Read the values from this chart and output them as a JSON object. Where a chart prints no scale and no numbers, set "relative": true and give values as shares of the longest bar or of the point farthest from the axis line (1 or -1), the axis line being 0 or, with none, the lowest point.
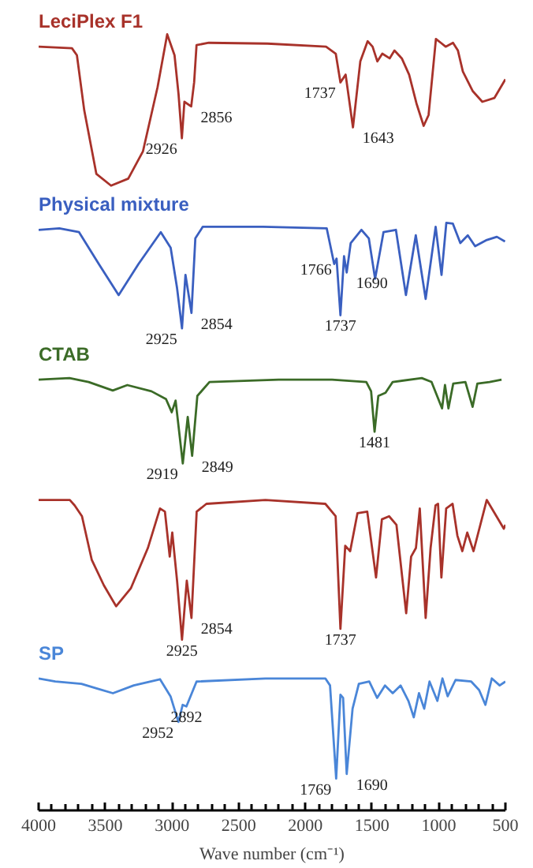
{
  "chart_data": {
    "type": "line",
    "relative": true,
    "xlabel": "Wave number (cm⁻¹)",
    "xlim": [
      4000,
      500
    ],
    "xticks": [
      4000,
      3500,
      3000,
      2500,
      2000,
      1500,
      1000,
      500
    ],
    "grid": false,
    "legend": false,
    "tick_labels": "x",
    "marker": "none",
    "line_style": "solid",
    "series": [
      {
        "name": "LeciPlex F1",
        "color": "#a8322a",
        "x": [
          4000,
          3750,
          3713,
          3658,
          3567,
          3457,
          3328,
          3218,
          3108,
          3036,
          2981,
          2951,
          2926,
          2907,
          2856,
          2834,
          2816,
          2724,
          2284,
          1845,
          1772,
          1737,
          1698,
          1643,
          1588,
          1533,
          1496,
          1460,
          1423,
          1368,
          1332,
          1277,
          1222,
          1167,
          1113,
          1076,
          1021,
          984,
          948,
          893,
          856,
          819,
          746,
          673,
          582,
          500
        ],
        "values": [
          0.984,
          0.982,
          0.973,
          0.902,
          0.82,
          0.805,
          0.814,
          0.849,
          0.932,
          1.0,
          0.973,
          0.923,
          0.866,
          0.913,
          0.907,
          0.938,
          0.986,
          0.989,
          0.988,
          0.984,
          0.975,
          0.938,
          0.948,
          0.88,
          0.965,
          0.991,
          0.984,
          0.965,
          0.975,
          0.969,
          0.979,
          0.969,
          0.948,
          0.911,
          0.882,
          0.896,
          0.994,
          0.989,
          0.984,
          0.989,
          0.979,
          0.952,
          0.927,
          0.913,
          0.918,
          0.942
        ]
      },
      {
        "name": "Physical mixture",
        "color": "#3a5fc0",
        "x": [
          4000,
          3845,
          3697,
          3549,
          3400,
          3251,
          3084,
          3010,
          2962,
          2925,
          2899,
          2854,
          2825,
          2769,
          2317,
          1840,
          1784,
          1766,
          1737,
          1710,
          1690,
          1660,
          1580,
          1524,
          1477,
          1414,
          1321,
          1246,
          1172,
          1098,
          1023,
          979,
          943,
          894,
          838,
          782,
          727,
          639,
          564,
          503
        ],
        "values": [
          0.748,
          0.75,
          0.745,
          0.704,
          0.664,
          0.704,
          0.745,
          0.725,
          0.673,
          0.621,
          0.69,
          0.641,
          0.737,
          0.752,
          0.752,
          0.75,
          0.704,
          0.711,
          0.638,
          0.714,
          0.693,
          0.731,
          0.748,
          0.737,
          0.685,
          0.745,
          0.748,
          0.664,
          0.741,
          0.659,
          0.752,
          0.69,
          0.757,
          0.756,
          0.731,
          0.741,
          0.727,
          0.735,
          0.739,
          0.733
        ]
      },
      {
        "name": "CTAB",
        "color": "#3b6b27",
        "x": [
          4000,
          3769,
          3625,
          3444,
          3335,
          3154,
          3045,
          3002,
          2973,
          2919,
          2882,
          2849,
          2810,
          2719,
          2200,
          1800,
          1543,
          1507,
          1481,
          1453,
          1399,
          1345,
          1127,
          1054,
          975,
          953,
          927,
          891,
          800,
          746,
          710,
          619,
          529
        ],
        "values": [
          0.555,
          0.557,
          0.552,
          0.541,
          0.548,
          0.54,
          0.53,
          0.513,
          0.528,
          0.447,
          0.507,
          0.457,
          0.534,
          0.552,
          0.555,
          0.555,
          0.552,
          0.54,
          0.488,
          0.534,
          0.538,
          0.552,
          0.557,
          0.552,
          0.518,
          0.548,
          0.518,
          0.55,
          0.552,
          0.52,
          0.55,
          0.552,
          0.555
        ]
      },
      {
        "color": "#a8322a",
        "x": [
          4000,
          3766,
          3730,
          3675,
          3602,
          3511,
          3419,
          3309,
          3181,
          3090,
          3053,
          3017,
          2998,
          2962,
          2925,
          2889,
          2854,
          2815,
          2742,
          2300,
          1850,
          1773,
          1737,
          1701,
          1664,
          1609,
          1536,
          1470,
          1426,
          1372,
          1317,
          1244,
          1207,
          1171,
          1142,
          1098,
          1061,
          1024,
          1005,
          980,
          944,
          896,
          860,
          823,
          786,
          739,
          640,
          567,
          512,
          500
        ],
        "values": [
          0.4,
          0.4,
          0.393,
          0.379,
          0.323,
          0.29,
          0.263,
          0.286,
          0.338,
          0.389,
          0.385,
          0.327,
          0.358,
          0.296,
          0.22,
          0.296,
          0.248,
          0.385,
          0.395,
          0.4,
          0.395,
          0.379,
          0.234,
          0.341,
          0.334,
          0.383,
          0.385,
          0.3,
          0.375,
          0.379,
          0.368,
          0.254,
          0.327,
          0.338,
          0.389,
          0.248,
          0.338,
          0.393,
          0.395,
          0.3,
          0.389,
          0.395,
          0.354,
          0.334,
          0.358,
          0.334,
          0.4,
          0.379,
          0.363,
          0.368
        ]
      },
      {
        "name": "SP",
        "color": "#4a86d8",
        "x": [
          4000,
          3875,
          3679,
          3561,
          3443,
          3287,
          3090,
          3011,
          2952,
          2920,
          2892,
          2816,
          2300,
          1850,
          1815,
          1769,
          1737,
          1717,
          1690,
          1646,
          1599,
          1521,
          1462,
          1403,
          1345,
          1286,
          1227,
          1187,
          1148,
          1109,
          1069,
          1010,
          972,
          933,
          874,
          756,
          697,
          650,
          602,
          543,
          500
        ],
        "values": [
          0.17,
          0.166,
          0.163,
          0.157,
          0.151,
          0.161,
          0.169,
          0.147,
          0.114,
          0.136,
          0.134,
          0.166,
          0.17,
          0.17,
          0.161,
          0.041,
          0.149,
          0.145,
          0.047,
          0.131,
          0.163,
          0.166,
          0.145,
          0.161,
          0.151,
          0.161,
          0.141,
          0.12,
          0.151,
          0.131,
          0.166,
          0.141,
          0.17,
          0.147,
          0.168,
          0.166,
          0.155,
          0.136,
          0.17,
          0.161,
          0.166
        ]
      }
    ],
    "annotations": [
      {
        "text": "2926",
        "x": 2926,
        "y": 0.866
      },
      {
        "text": "2856",
        "x": 2856,
        "y": 0.907
      },
      {
        "text": "1737",
        "x": 1737,
        "y": 0.938
      },
      {
        "text": "1643",
        "x": 1643,
        "y": 0.88
      },
      {
        "text": "2925",
        "x": 2925,
        "y": 0.621
      },
      {
        "text": "2854",
        "x": 2854,
        "y": 0.641
      },
      {
        "text": "1766",
        "x": 1766,
        "y": 0.711
      },
      {
        "text": "1737",
        "x": 1737,
        "y": 0.638
      },
      {
        "text": "1690",
        "x": 1690,
        "y": 0.693
      },
      {
        "text": "2919",
        "x": 2919,
        "y": 0.447
      },
      {
        "text": "2849",
        "x": 2849,
        "y": 0.457
      },
      {
        "text": "1481",
        "x": 1481,
        "y": 0.488
      },
      {
        "text": "2925",
        "x": 2925,
        "y": 0.22
      },
      {
        "text": "2854",
        "x": 2854,
        "y": 0.248
      },
      {
        "text": "1737",
        "x": 1737,
        "y": 0.234
      },
      {
        "text": "2952",
        "x": 2952,
        "y": 0.114
      },
      {
        "text": "2892",
        "x": 2892,
        "y": 0.134
      },
      {
        "text": "1769",
        "x": 1769,
        "y": 0.041
      },
      {
        "text": "1690",
        "x": 1690,
        "y": 0.047
      }
    ]
  }
}
